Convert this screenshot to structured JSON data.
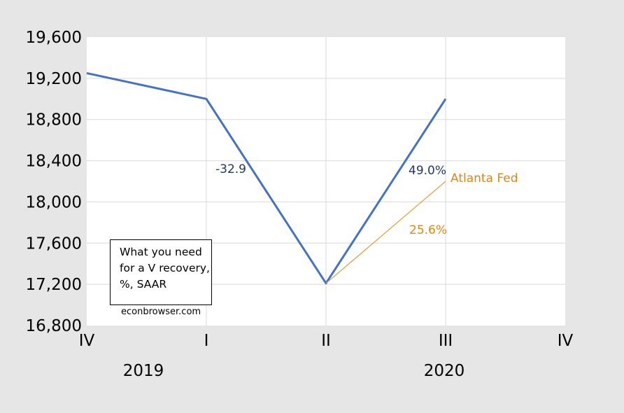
{
  "chart_data": {
    "type": "line",
    "title": "",
    "xlabel": "",
    "ylabel": "",
    "ylim": [
      16800,
      19600
    ],
    "yticks": [
      "19,600",
      "19,200",
      "18,800",
      "18,400",
      "18,000",
      "17,600",
      "17,200",
      "16,800"
    ],
    "x_quarters": [
      "IV",
      "I",
      "II",
      "III",
      "IV"
    ],
    "x_years": [
      {
        "label": "2019",
        "quarter_index": 0
      },
      {
        "label": "2020",
        "quarter_index": 3
      }
    ],
    "series": [
      {
        "color": "#4472c4",
        "points": [
          {
            "quarter_index": 0,
            "value": 19250
          },
          {
            "quarter_index": 1,
            "value": 19000
          },
          {
            "quarter_index": 2,
            "value": 17210
          },
          {
            "quarter_index": 3,
            "value": 19000
          }
        ]
      },
      {
        "color": "#e39a3b",
        "points": [
          {
            "quarter_index": 2,
            "value": 17210
          },
          {
            "quarter_index": 3,
            "value": 18200
          }
        ]
      }
    ],
    "annotations": [
      {
        "text": "-32.9",
        "color": "#1f3864"
      },
      {
        "text": "49.0%",
        "color": "#1f3864"
      },
      {
        "text": "Atlanta Fed",
        "color": "#d68a1a"
      },
      {
        "text": "25.6%",
        "color": "#d68a1a"
      }
    ],
    "grid": true
  },
  "note": {
    "lines": [
      "What you need",
      "for a V recovery,",
      "%, SAAR"
    ],
    "credit": "econbrowser.com"
  }
}
